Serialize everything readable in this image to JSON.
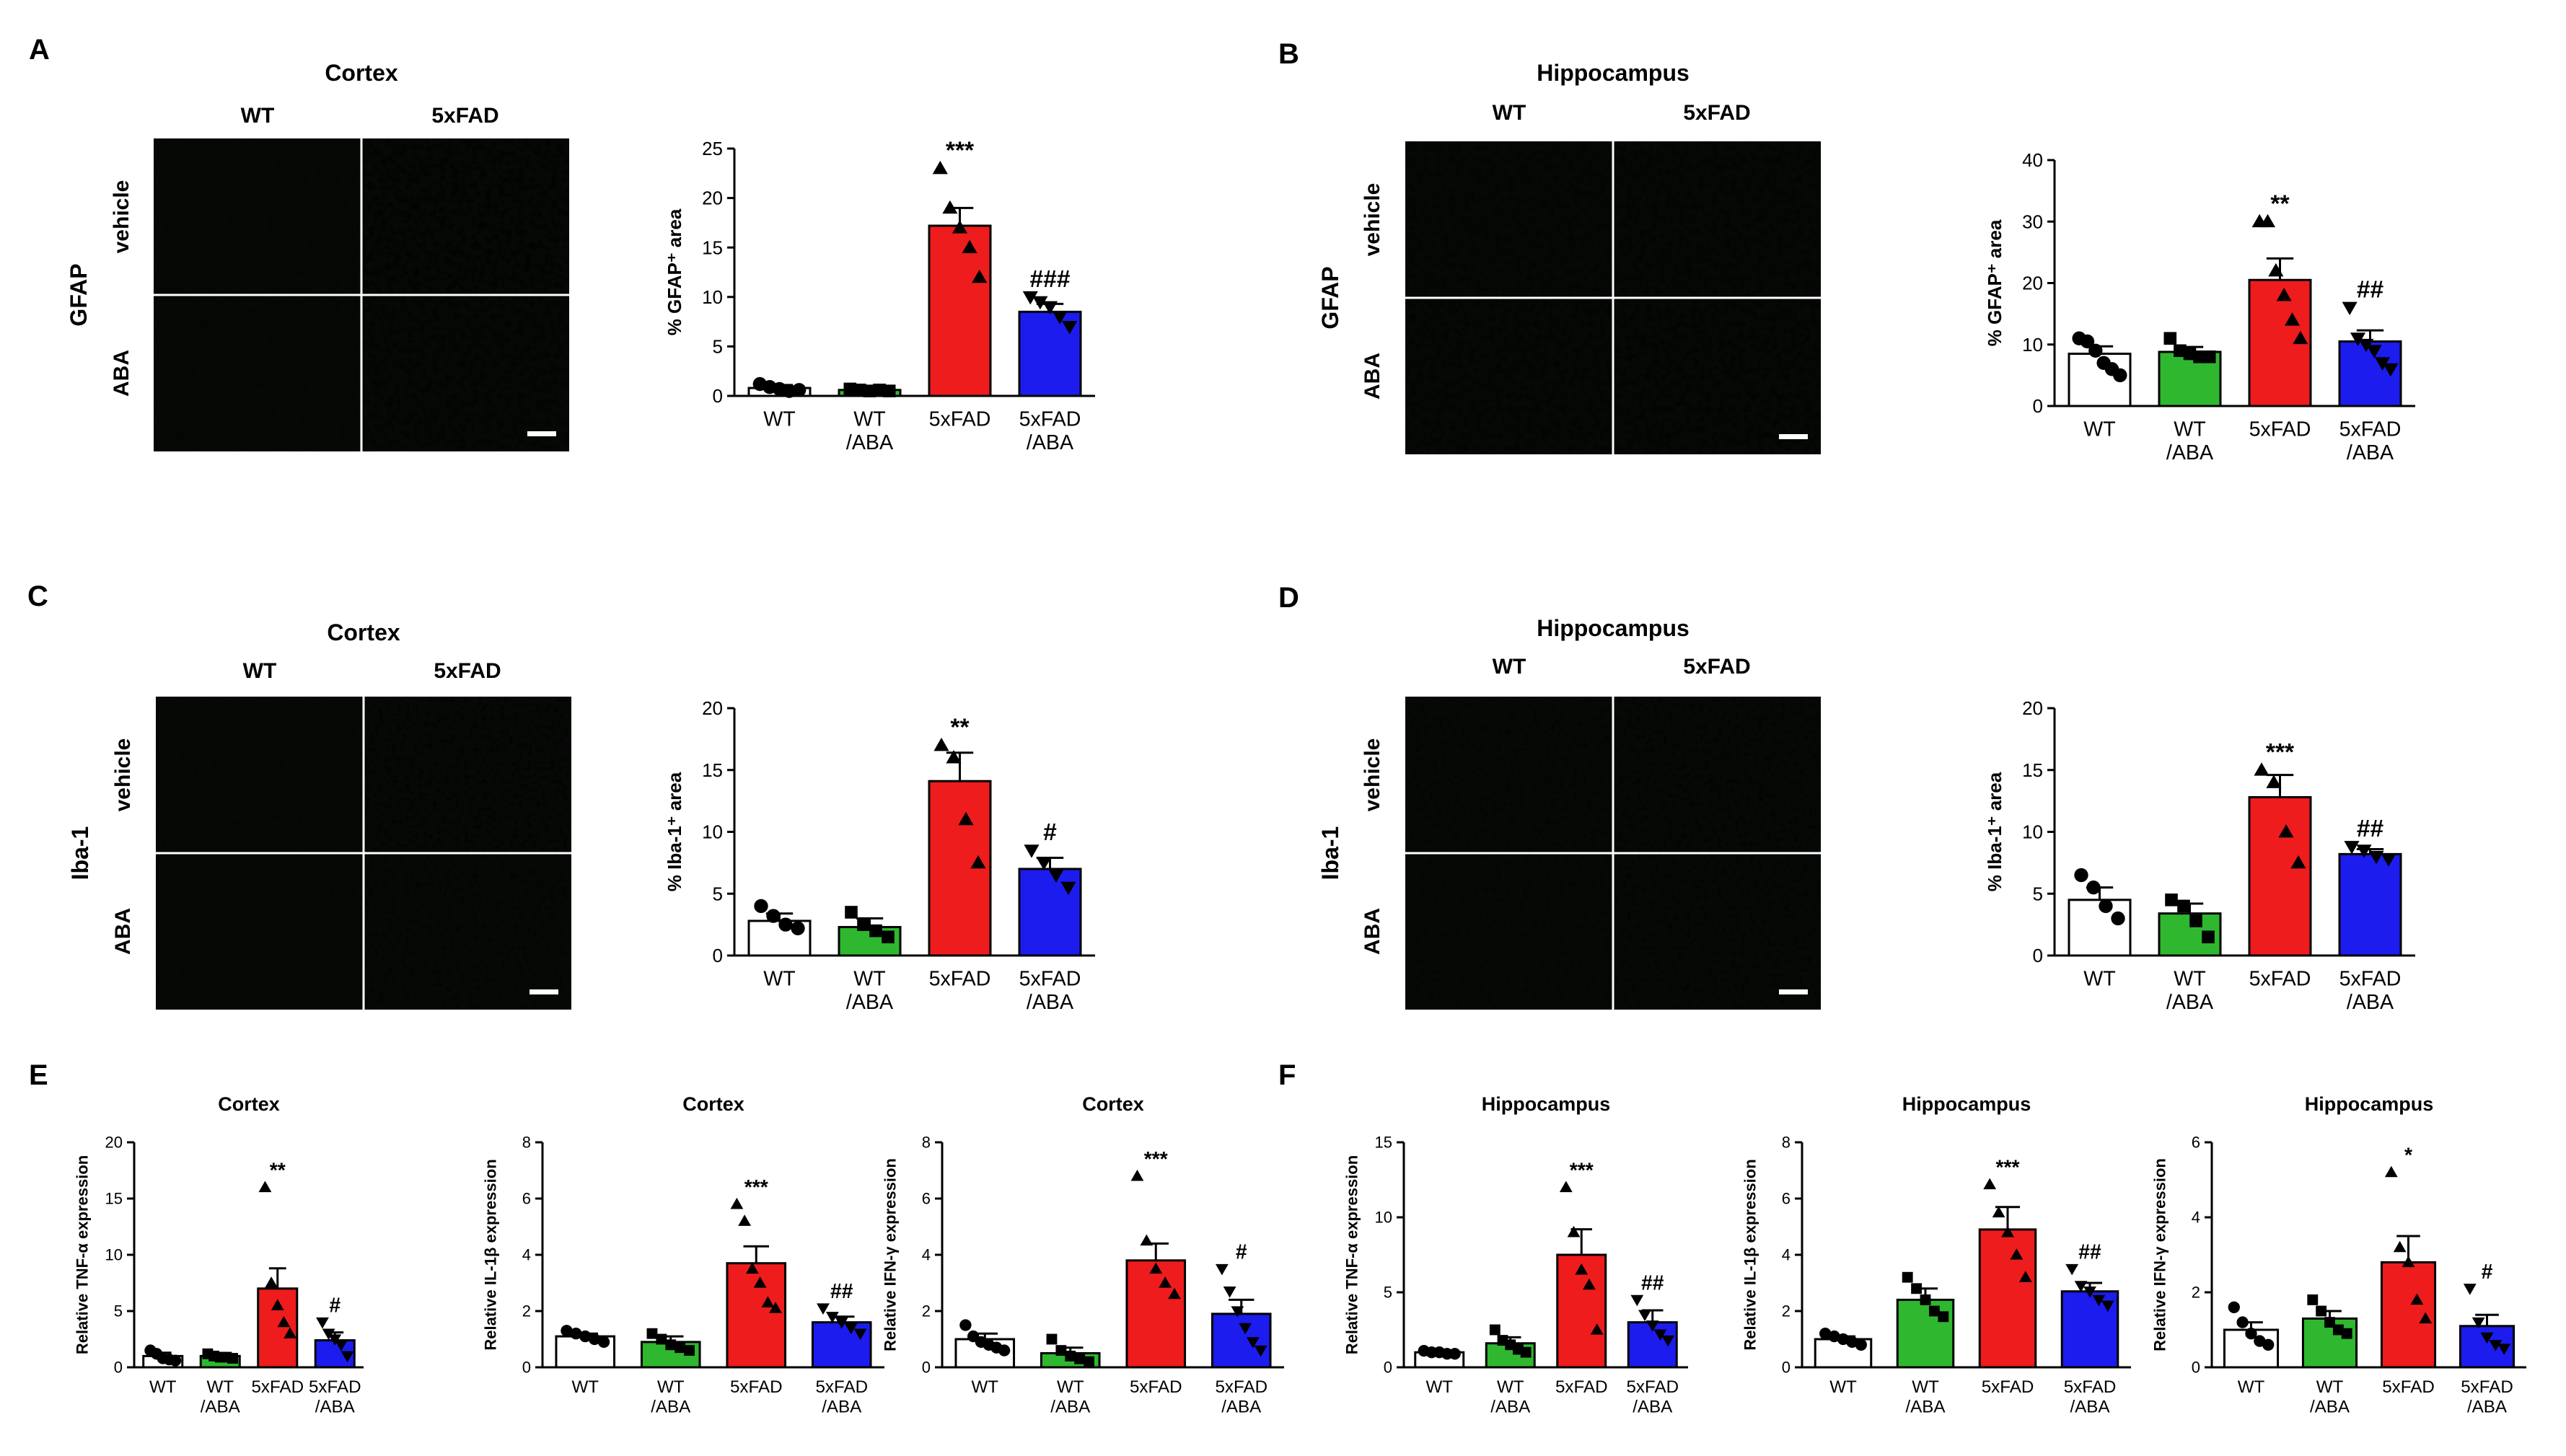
{
  "figure": {
    "colors": {
      "WT": "#ffffff",
      "WT/ABA": "#2fb82f",
      "5xFAD": "#ee1c1c",
      "5xFAD/ABA": "#1c1cee",
      "gfap_stain": "#2fc33a",
      "iba_stain": "#e0141e"
    },
    "scatter_markers": [
      "circle",
      "square",
      "triangle",
      "triangle-down"
    ]
  },
  "chart_data": [
    {
      "panel": "A",
      "type": "micrograph-grid",
      "title": "Cortex",
      "stain": "GFAP",
      "columns": [
        "WT",
        "5xFAD"
      ],
      "rows": [
        "vehicle",
        "ABA"
      ],
      "intensity": [
        [
          0.12,
          0.85
        ],
        [
          0.18,
          0.6
        ]
      ]
    },
    {
      "panel": "A",
      "type": "bar",
      "title": "",
      "ylabel": "% GFAP⁺ area",
      "categories": [
        "WT",
        "WT\n/ABA",
        "5xFAD",
        "5xFAD\n/ABA"
      ],
      "values": [
        0.8,
        0.6,
        17.2,
        8.5
      ],
      "errors": [
        0.3,
        0.2,
        1.8,
        0.8
      ],
      "points": [
        [
          1.2,
          0.9,
          0.7,
          0.5,
          0.6
        ],
        [
          0.7,
          0.6,
          0.5,
          0.6,
          0.5
        ],
        [
          23,
          19,
          17,
          15,
          12
        ],
        [
          10,
          9.5,
          9,
          8,
          7
        ]
      ],
      "significance": [
        "",
        "",
        "***",
        "###"
      ],
      "ylim": [
        0,
        25
      ],
      "yticks": [
        0,
        5,
        10,
        15,
        20,
        25
      ]
    },
    {
      "panel": "B",
      "type": "micrograph-grid",
      "title": "Hippocampus",
      "stain": "GFAP",
      "columns": [
        "WT",
        "5xFAD"
      ],
      "rows": [
        "vehicle",
        "ABA"
      ],
      "intensity": [
        [
          0.4,
          0.55
        ],
        [
          0.55,
          0.65
        ]
      ]
    },
    {
      "panel": "B",
      "type": "bar",
      "title": "",
      "ylabel": "% GFAP⁺ area",
      "categories": [
        "WT",
        "WT\n/ABA",
        "5xFAD",
        "5xFAD\n/ABA"
      ],
      "values": [
        8.5,
        8.8,
        20.5,
        10.5
      ],
      "errors": [
        1.2,
        0.8,
        3.5,
        1.8
      ],
      "points": [
        [
          11,
          10.5,
          9,
          7,
          6,
          5
        ],
        [
          11,
          9,
          8.5,
          8,
          8
        ],
        [
          30,
          30,
          22,
          18,
          14,
          11
        ],
        [
          16,
          11,
          10,
          9,
          7,
          6
        ]
      ],
      "significance": [
        "",
        "",
        "**",
        "##"
      ],
      "ylim": [
        0,
        40
      ],
      "yticks": [
        0,
        10,
        20,
        30,
        40
      ]
    },
    {
      "panel": "C",
      "type": "micrograph-grid",
      "title": "Cortex",
      "stain": "Iba-1",
      "columns": [
        "WT",
        "5xFAD"
      ],
      "rows": [
        "vehicle",
        "ABA"
      ],
      "intensity": [
        [
          0.15,
          0.7
        ],
        [
          0.15,
          0.45
        ]
      ]
    },
    {
      "panel": "C",
      "type": "bar",
      "title": "",
      "ylabel": "% Iba-1⁺ area",
      "categories": [
        "WT",
        "WT\n/ABA",
        "5xFAD",
        "5xFAD\n/ABA"
      ],
      "values": [
        2.8,
        2.3,
        14.1,
        7.0
      ],
      "errors": [
        0.6,
        0.7,
        2.3,
        0.9
      ],
      "points": [
        [
          4.0,
          3.2,
          2.5,
          2.2
        ],
        [
          3.5,
          2.5,
          2.0,
          1.5
        ],
        [
          17,
          16,
          11,
          7.5
        ],
        [
          8.5,
          7.5,
          6.5,
          5.5
        ]
      ],
      "significance": [
        "",
        "",
        "**",
        "#"
      ],
      "ylim": [
        0,
        20
      ],
      "yticks": [
        0,
        5,
        10,
        15,
        20
      ]
    },
    {
      "panel": "D",
      "type": "micrograph-grid",
      "title": "Hippocampus",
      "stain": "Iba-1",
      "columns": [
        "WT",
        "5xFAD"
      ],
      "rows": [
        "vehicle",
        "ABA"
      ],
      "intensity": [
        [
          0.45,
          0.6
        ],
        [
          0.3,
          0.5
        ]
      ]
    },
    {
      "panel": "D",
      "type": "bar",
      "title": "",
      "ylabel": "% Iba-1⁺ area",
      "categories": [
        "WT",
        "WT\n/ABA",
        "5xFAD",
        "5xFAD\n/ABA"
      ],
      "values": [
        4.5,
        3.4,
        12.8,
        8.2
      ],
      "errors": [
        1.0,
        0.8,
        1.8,
        0.4
      ],
      "points": [
        [
          6.5,
          5.5,
          4.0,
          3.0
        ],
        [
          4.5,
          4.0,
          2.8,
          1.5
        ],
        [
          15,
          14,
          10,
          7.5
        ],
        [
          8.8,
          8.5,
          8.0,
          7.8
        ]
      ],
      "significance": [
        "",
        "",
        "***",
        "##"
      ],
      "ylim": [
        0,
        20
      ],
      "yticks": [
        0,
        5,
        10,
        15,
        20
      ]
    },
    {
      "panel": "E",
      "type": "bar",
      "title": "Cortex",
      "ylabel": "Relative TNF-α expression",
      "categories": [
        "WT",
        "WT\n/ABA",
        "5xFAD",
        "5xFAD\n/ABA"
      ],
      "values": [
        1.0,
        1.0,
        7.0,
        2.4
      ],
      "errors": [
        0.3,
        0.2,
        1.8,
        0.7
      ],
      "points": [
        [
          1.5,
          1.2,
          0.8,
          0.7,
          0.6
        ],
        [
          1.2,
          1.0,
          0.9,
          0.9,
          0.8
        ],
        [
          16,
          7.5,
          5.5,
          4,
          3
        ],
        [
          4,
          3,
          2.5,
          2,
          1
        ]
      ],
      "significance": [
        "",
        "",
        "**",
        "#"
      ],
      "ylim": [
        0,
        20
      ],
      "yticks": [
        0,
        5,
        10,
        15,
        20
      ]
    },
    {
      "panel": "E",
      "type": "bar",
      "title": "Cortex",
      "ylabel": "Relative IL-1β expression",
      "categories": [
        "WT",
        "WT\n/ABA",
        "5xFAD",
        "5xFAD\n/ABA"
      ],
      "values": [
        1.1,
        0.9,
        3.7,
        1.6
      ],
      "errors": [
        0.1,
        0.2,
        0.6,
        0.2
      ],
      "points": [
        [
          1.3,
          1.2,
          1.1,
          1.0,
          0.9
        ],
        [
          1.2,
          1.0,
          0.8,
          0.7,
          0.6
        ],
        [
          5.8,
          5.2,
          3.5,
          3,
          2.3,
          2.1
        ],
        [
          2.1,
          1.8,
          1.6,
          1.4,
          1.2
        ]
      ],
      "significance": [
        "",
        "",
        "***",
        "##"
      ],
      "ylim": [
        0,
        8
      ],
      "yticks": [
        0,
        2,
        4,
        6,
        8
      ]
    },
    {
      "panel": "E",
      "type": "bar",
      "title": "Cortex",
      "ylabel": "Relative IFN-γ expression",
      "categories": [
        "WT",
        "WT\n/ABA",
        "5xFAD",
        "5xFAD\n/ABA"
      ],
      "values": [
        1.0,
        0.5,
        3.8,
        1.9
      ],
      "errors": [
        0.2,
        0.2,
        0.6,
        0.5
      ],
      "points": [
        [
          1.5,
          1.1,
          0.9,
          0.8,
          0.7,
          0.6
        ],
        [
          1.0,
          0.6,
          0.4,
          0.3,
          0.2
        ],
        [
          6.8,
          4.5,
          3.5,
          3,
          2.6
        ],
        [
          3.5,
          2.7,
          2,
          1.4,
          0.9,
          0.6
        ]
      ],
      "significance": [
        "",
        "",
        "***",
        "#"
      ],
      "ylim": [
        0,
        8
      ],
      "yticks": [
        0,
        2,
        4,
        6,
        8
      ]
    },
    {
      "panel": "F",
      "type": "bar",
      "title": "Hippocampus",
      "ylabel": "Relative TNF-α expression",
      "categories": [
        "WT",
        "WT\n/ABA",
        "5xFAD",
        "5xFAD\n/ABA"
      ],
      "values": [
        1.0,
        1.6,
        7.5,
        3.0
      ],
      "errors": [
        0.1,
        0.4,
        1.7,
        0.8
      ],
      "points": [
        [
          1.1,
          1.0,
          1.0,
          0.9,
          0.9
        ],
        [
          2.5,
          1.8,
          1.5,
          1.2,
          1.0
        ],
        [
          12,
          9,
          6.5,
          5.5,
          2.5
        ],
        [
          4.5,
          3.5,
          2.8,
          2.2,
          1.8
        ]
      ],
      "significance": [
        "",
        "",
        "***",
        "##"
      ],
      "ylim": [
        0,
        15
      ],
      "yticks": [
        0,
        5,
        10,
        15
      ]
    },
    {
      "panel": "F",
      "type": "bar",
      "title": "Hippocampus",
      "ylabel": "Relative IL-1β expression",
      "categories": [
        "WT",
        "WT\n/ABA",
        "5xFAD",
        "5xFAD\n/ABA"
      ],
      "values": [
        1.0,
        2.4,
        4.9,
        2.7
      ],
      "errors": [
        0.1,
        0.4,
        0.8,
        0.3
      ],
      "points": [
        [
          1.2,
          1.1,
          1.0,
          0.9,
          0.8
        ],
        [
          3.2,
          2.8,
          2.4,
          2.0,
          1.8
        ],
        [
          6.5,
          5.5,
          4.8,
          4,
          3.2
        ],
        [
          3.5,
          2.9,
          2.7,
          2.4,
          2.2
        ]
      ],
      "significance": [
        "",
        "",
        "***",
        "##"
      ],
      "ylim": [
        0,
        8
      ],
      "yticks": [
        0,
        2,
        4,
        6,
        8
      ]
    },
    {
      "panel": "F",
      "type": "bar",
      "title": "Hippocampus",
      "ylabel": "Relative IFN-γ expression",
      "categories": [
        "WT",
        "WT\n/ABA",
        "5xFAD",
        "5xFAD\n/ABA"
      ],
      "values": [
        1.0,
        1.3,
        2.8,
        1.1
      ],
      "errors": [
        0.2,
        0.2,
        0.7,
        0.3
      ],
      "points": [
        [
          1.6,
          1.2,
          0.9,
          0.7,
          0.6
        ],
        [
          1.8,
          1.5,
          1.2,
          1.0,
          0.9
        ],
        [
          5.2,
          3.2,
          2.8,
          1.8,
          1.3
        ],
        [
          2.1,
          1.2,
          0.8,
          0.6,
          0.5
        ]
      ],
      "significance": [
        "",
        "",
        "*",
        "#"
      ],
      "ylim": [
        0,
        6
      ],
      "yticks": [
        0,
        2,
        4,
        6
      ]
    }
  ]
}
